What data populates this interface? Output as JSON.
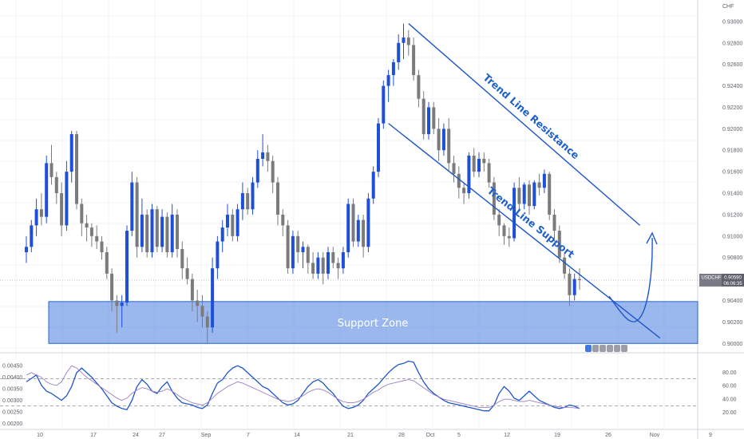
{
  "chart_data": [
    {
      "type": "candlestick",
      "currency": "CHF",
      "symbol_label": "USDCHF",
      "last_price": "0.90590",
      "countdown": "06:06:35",
      "y_ticks": [
        "0.93000",
        "0.92800",
        "0.92600",
        "0.92400",
        "0.92200",
        "0.92000",
        "0.91800",
        "0.91600",
        "0.91400",
        "0.91200",
        "0.91000",
        "0.90800",
        "0.90600",
        "0.90400",
        "0.90200",
        "0.90000"
      ],
      "y_range": [
        0.8995,
        0.932
      ],
      "x_labels": [
        "10",
        "17",
        "24",
        "27",
        "Sep",
        "7",
        "14",
        "21",
        "28",
        "Oct",
        "5",
        "12",
        "19",
        "26",
        "Nov",
        "9"
      ],
      "candles": [
        [
          0.9085,
          0.91,
          0.9075,
          0.909
        ],
        [
          0.909,
          0.9115,
          0.9085,
          0.911
        ],
        [
          0.911,
          0.9135,
          0.91,
          0.9125
        ],
        [
          0.9125,
          0.914,
          0.911,
          0.9118
        ],
        [
          0.9118,
          0.9175,
          0.9112,
          0.9168
        ],
        [
          0.9168,
          0.9185,
          0.9148,
          0.9155
        ],
        [
          0.9155,
          0.916,
          0.913,
          0.914
        ],
        [
          0.914,
          0.915,
          0.91,
          0.911
        ],
        [
          0.911,
          0.917,
          0.9105,
          0.916
        ],
        [
          0.916,
          0.9198,
          0.915,
          0.9195
        ],
        [
          0.9195,
          0.9198,
          0.9125,
          0.913
        ],
        [
          0.913,
          0.9135,
          0.91,
          0.9112
        ],
        [
          0.9112,
          0.912,
          0.9095,
          0.9108
        ],
        [
          0.9108,
          0.9112,
          0.909,
          0.91
        ],
        [
          0.91,
          0.911,
          0.9088,
          0.9095
        ],
        [
          0.9095,
          0.91,
          0.9078,
          0.9085
        ],
        [
          0.9085,
          0.909,
          0.906,
          0.9065
        ],
        [
          0.9065,
          0.907,
          0.903,
          0.904
        ],
        [
          0.904,
          0.9045,
          0.901,
          0.9035
        ],
        [
          0.9035,
          0.9045,
          0.9015,
          0.9038
        ],
        [
          0.9038,
          0.911,
          0.9035,
          0.9105
        ],
        [
          0.9105,
          0.916,
          0.91,
          0.915
        ],
        [
          0.915,
          0.9155,
          0.908,
          0.909
        ],
        [
          0.909,
          0.9135,
          0.9085,
          0.912
        ],
        [
          0.912,
          0.9125,
          0.908,
          0.9085
        ],
        [
          0.9085,
          0.913,
          0.908,
          0.9125
        ],
        [
          0.9125,
          0.9128,
          0.9085,
          0.909
        ],
        [
          0.909,
          0.9125,
          0.9085,
          0.9118
        ],
        [
          0.9118,
          0.9122,
          0.908,
          0.9085
        ],
        [
          0.9085,
          0.913,
          0.908,
          0.912
        ],
        [
          0.912,
          0.9125,
          0.908,
          0.9088
        ],
        [
          0.9088,
          0.9095,
          0.906,
          0.907
        ],
        [
          0.907,
          0.908,
          0.9055,
          0.906
        ],
        [
          0.906,
          0.9065,
          0.903,
          0.904
        ],
        [
          0.904,
          0.905,
          0.902,
          0.9035
        ],
        [
          0.9035,
          0.9045,
          0.9015,
          0.9025
        ],
        [
          0.9025,
          0.903,
          0.9,
          0.9015
        ],
        [
          0.9015,
          0.908,
          0.901,
          0.907
        ],
        [
          0.907,
          0.91,
          0.906,
          0.9095
        ],
        [
          0.9095,
          0.9115,
          0.9085,
          0.9108
        ],
        [
          0.9108,
          0.913,
          0.91,
          0.912
        ],
        [
          0.912,
          0.9125,
          0.9095,
          0.91
        ],
        [
          0.91,
          0.913,
          0.9095,
          0.9125
        ],
        [
          0.9125,
          0.915,
          0.9115,
          0.914
        ],
        [
          0.914,
          0.9145,
          0.912,
          0.9125
        ],
        [
          0.9125,
          0.9155,
          0.912,
          0.915
        ],
        [
          0.915,
          0.918,
          0.9145,
          0.9172
        ],
        [
          0.9172,
          0.9195,
          0.9165,
          0.9178
        ],
        [
          0.9178,
          0.9185,
          0.916,
          0.917
        ],
        [
          0.917,
          0.9175,
          0.914,
          0.915
        ],
        [
          0.915,
          0.9155,
          0.911,
          0.912
        ],
        [
          0.912,
          0.9125,
          0.91,
          0.911
        ],
        [
          0.911,
          0.9115,
          0.9065,
          0.907
        ],
        [
          0.907,
          0.9105,
          0.9065,
          0.91
        ],
        [
          0.91,
          0.9105,
          0.9075,
          0.9085
        ],
        [
          0.9085,
          0.9095,
          0.907,
          0.909
        ],
        [
          0.909,
          0.9092,
          0.9065,
          0.9075
        ],
        [
          0.9075,
          0.9085,
          0.906,
          0.9065
        ],
        [
          0.9065,
          0.9085,
          0.906,
          0.908
        ],
        [
          0.908,
          0.9085,
          0.9055,
          0.9065
        ],
        [
          0.9065,
          0.909,
          0.906,
          0.9085
        ],
        [
          0.9085,
          0.909,
          0.907,
          0.9075
        ],
        [
          0.9075,
          0.908,
          0.906,
          0.907
        ],
        [
          0.907,
          0.909,
          0.9065,
          0.9085
        ],
        [
          0.9085,
          0.9135,
          0.908,
          0.913
        ],
        [
          0.913,
          0.9135,
          0.909,
          0.9095
        ],
        [
          0.9095,
          0.912,
          0.909,
          0.9115
        ],
        [
          0.9115,
          0.912,
          0.908,
          0.909
        ],
        [
          0.909,
          0.914,
          0.9085,
          0.9135
        ],
        [
          0.9135,
          0.9165,
          0.913,
          0.916
        ],
        [
          0.916,
          0.921,
          0.9155,
          0.9205
        ],
        [
          0.9205,
          0.9245,
          0.92,
          0.924
        ],
        [
          0.924,
          0.9255,
          0.9225,
          0.925
        ],
        [
          0.925,
          0.9265,
          0.924,
          0.9262
        ],
        [
          0.9262,
          0.9288,
          0.9255,
          0.928
        ],
        [
          0.928,
          0.9298,
          0.9265,
          0.9285
        ],
        [
          0.9285,
          0.9292,
          0.9268,
          0.9278
        ],
        [
          0.9278,
          0.9285,
          0.9245,
          0.925
        ],
        [
          0.925,
          0.9255,
          0.922,
          0.9228
        ],
        [
          0.9228,
          0.9235,
          0.919,
          0.9195
        ],
        [
          0.9195,
          0.9225,
          0.919,
          0.922
        ],
        [
          0.922,
          0.9225,
          0.9195,
          0.92
        ],
        [
          0.92,
          0.921,
          0.917,
          0.918
        ],
        [
          0.918,
          0.9205,
          0.9175,
          0.92
        ],
        [
          0.92,
          0.921,
          0.916,
          0.9168
        ],
        [
          0.9168,
          0.9175,
          0.915,
          0.9158
        ],
        [
          0.9158,
          0.9165,
          0.9135,
          0.9145
        ],
        [
          0.9145,
          0.915,
          0.913,
          0.914
        ],
        [
          0.914,
          0.9178,
          0.9135,
          0.9175
        ],
        [
          0.9175,
          0.9182,
          0.9155,
          0.916
        ],
        [
          0.916,
          0.9178,
          0.9155,
          0.9172
        ],
        [
          0.9172,
          0.9178,
          0.916,
          0.9168
        ],
        [
          0.9168,
          0.9172,
          0.9145,
          0.915
        ],
        [
          0.915,
          0.9155,
          0.9115,
          0.912
        ],
        [
          0.912,
          0.9125,
          0.91,
          0.911
        ],
        [
          0.911,
          0.9112,
          0.9092,
          0.91
        ],
        [
          0.91,
          0.9108,
          0.909,
          0.9098
        ],
        [
          0.9098,
          0.915,
          0.9095,
          0.9145
        ],
        [
          0.9145,
          0.9155,
          0.9125,
          0.913
        ],
        [
          0.913,
          0.915,
          0.9125,
          0.9148
        ],
        [
          0.9148,
          0.9152,
          0.912,
          0.9128
        ],
        [
          0.9128,
          0.9152,
          0.9125,
          0.915
        ],
        [
          0.915,
          0.9158,
          0.9138,
          0.9145
        ],
        [
          0.9145,
          0.9162,
          0.914,
          0.9158
        ],
        [
          0.9158,
          0.916,
          0.9115,
          0.912
        ],
        [
          0.912,
          0.9125,
          0.9095,
          0.9105
        ],
        [
          0.9105,
          0.911,
          0.9075,
          0.908
        ],
        [
          0.908,
          0.9085,
          0.906,
          0.9065
        ],
        [
          0.9065,
          0.907,
          0.9035,
          0.9045
        ],
        [
          0.9045,
          0.9065,
          0.904,
          0.906
        ],
        [
          0.906,
          0.907,
          0.905,
          0.9059
        ]
      ],
      "support_zone": {
        "label": "Support Zone",
        "low": 0.9,
        "high": 0.9039
      },
      "annotations": [
        {
          "text": "Trend Line Resistance",
          "from": [
            0.9298,
            76
          ],
          "to": [
            0.911,
            122
          ]
        },
        {
          "text": "Trend Line Support",
          "from": [
            0.9205,
            72
          ],
          "to": [
            0.9005,
            126
          ]
        }
      ],
      "projection": "curved arrow dipping toward the support zone and rebounding upward"
    },
    {
      "type": "line",
      "series": [
        {
          "values": [
            0.0038,
            0.00395,
            0.0041,
            0.00365,
            0.0034,
            0.0033,
            0.00315,
            0.003,
            0.0032,
            0.0036,
            0.0042,
            0.0044,
            0.0042,
            0.004,
            0.00375,
            0.0035,
            0.0032,
            0.0029,
            0.00275,
            0.00265,
            0.0026,
            0.003,
            0.0036,
            0.0039,
            0.0037,
            0.0034,
            0.0033,
            0.0036,
            0.0038,
            0.0034,
            0.0031,
            0.0029,
            0.00285,
            0.0028,
            0.0027,
            0.00265,
            0.0028,
            0.0033,
            0.00375,
            0.0039,
            0.0042,
            0.0044,
            0.0045,
            0.0044,
            0.0042,
            0.004,
            0.0038,
            0.0036,
            0.0035,
            0.0033,
            0.0031,
            0.0029,
            0.0028,
            0.00285,
            0.003,
            0.0033,
            0.0036,
            0.0038,
            0.0039,
            0.00375,
            0.0035,
            0.0033,
            0.003,
            0.00275,
            0.00265,
            0.0027,
            0.0028,
            0.003,
            0.0033,
            0.0035,
            0.0037,
            0.00395,
            0.0042,
            0.0044,
            0.00455,
            0.0046,
            0.0047,
            0.00465,
            0.0042,
            0.0038,
            0.0035,
            0.0033,
            0.00315,
            0.003,
            0.0029,
            0.00285,
            0.0028,
            0.00275,
            0.0027,
            0.00265,
            0.0026,
            0.00255,
            0.00255,
            0.0028,
            0.0033,
            0.0036,
            0.0034,
            0.0031,
            0.003,
            0.0032,
            0.0034,
            0.0032,
            0.003,
            0.0029,
            0.0028,
            0.0027,
            0.00265,
            0.0027,
            0.0028,
            0.00275,
            0.00265
          ]
        },
        {
          "values": [
            0.0041,
            0.0042,
            0.0041,
            0.004,
            0.0038,
            0.0037,
            0.00365,
            0.0038,
            0.0042,
            0.0045,
            0.0044,
            0.0042,
            0.004,
            0.00385,
            0.0037,
            0.00355,
            0.0034,
            0.00325,
            0.0031,
            0.003,
            0.0031,
            0.0033,
            0.00345,
            0.00355,
            0.0035,
            0.0034,
            0.00335,
            0.0034,
            0.0035,
            0.0034,
            0.00325,
            0.0031,
            0.003,
            0.0029,
            0.00285,
            0.0028,
            0.0029,
            0.0031,
            0.0033,
            0.00345,
            0.0036,
            0.0037,
            0.0038,
            0.00375,
            0.00365,
            0.00355,
            0.00345,
            0.00335,
            0.00325,
            0.00315,
            0.00305,
            0.003,
            0.00295,
            0.003,
            0.0031,
            0.0032,
            0.00335,
            0.00345,
            0.0035,
            0.00345,
            0.00335,
            0.0032,
            0.00305,
            0.00295,
            0.0029,
            0.0029,
            0.00295,
            0.00305,
            0.0032,
            0.00335,
            0.00345,
            0.0036,
            0.0037,
            0.00375,
            0.0038,
            0.00385,
            0.0039,
            0.00385,
            0.0037,
            0.00355,
            0.0034,
            0.00325,
            0.00315,
            0.00305,
            0.003,
            0.00295,
            0.0029,
            0.00285,
            0.0028,
            0.00275,
            0.0027,
            0.0027,
            0.0027,
            0.0028,
            0.00295,
            0.00305,
            0.00305,
            0.003,
            0.00295,
            0.00295,
            0.003,
            0.00295,
            0.0029,
            0.00285,
            0.0028,
            0.00275,
            0.00272,
            0.0027,
            0.0027,
            0.00268,
            0.00265
          ]
        }
      ],
      "y_ticks_left": [
        "0.00450",
        "0.00400",
        "0.00350",
        "0.00300",
        "0.00250",
        "0.00200"
      ],
      "y_ticks_right": [
        "80.00",
        "60.00",
        "40.00",
        "20.00"
      ],
      "dashed_levels": [
        70,
        30
      ],
      "y_range": [
        0.00185,
        0.00485
      ]
    }
  ]
}
